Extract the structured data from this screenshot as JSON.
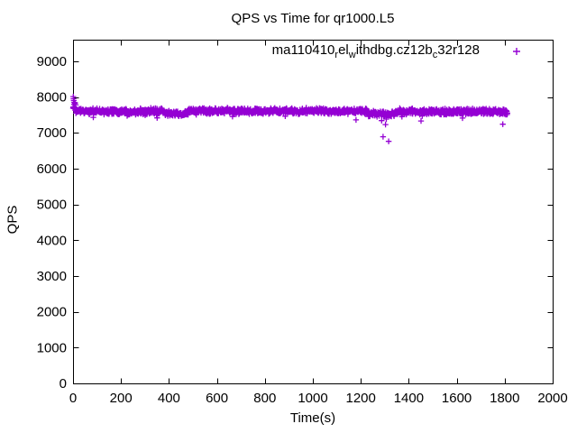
{
  "colors": {
    "series": "#9400D3",
    "axis": "#000000",
    "text": "#000000",
    "background": "#ffffff"
  },
  "chart_data": {
    "type": "scatter",
    "title": "QPS vs Time for qr1000.L5",
    "xlabel": "Time(s)",
    "ylabel": "QPS",
    "xlim": [
      0,
      2000
    ],
    "ylim": [
      0,
      9600
    ],
    "x_ticks": [
      0,
      200,
      400,
      600,
      800,
      1000,
      1200,
      1400,
      1600,
      1800,
      2000
    ],
    "y_ticks": [
      0,
      1000,
      2000,
      3000,
      4000,
      5000,
      6000,
      7000,
      8000,
      9000
    ],
    "grid": false,
    "ticks_mirrored_inward": true,
    "legend_position": "top-right-inside",
    "series": [
      {
        "name": "ma110410_rel_withdbg.cz12b_c32r128",
        "marker": "plus",
        "color": "#9400D3",
        "description": "Dense steady band of ~1 sample/s from t=0 to t=1812 s, QPS ~7500-7700, brief slight dips near t=380-480 and t=1230-1345, deep outliers near t=1300",
        "band_segments": [
          {
            "t_start": 0,
            "t_end": 12,
            "qps_mean": 7720,
            "qps_jitter": 130
          },
          {
            "t_start": 12,
            "t_end": 380,
            "qps_mean": 7600,
            "qps_jitter": 100
          },
          {
            "t_start": 380,
            "t_end": 480,
            "qps_mean": 7540,
            "qps_jitter": 90
          },
          {
            "t_start": 480,
            "t_end": 1230,
            "qps_mean": 7605,
            "qps_jitter": 100
          },
          {
            "t_start": 1230,
            "t_end": 1345,
            "qps_mean": 7525,
            "qps_jitter": 100
          },
          {
            "t_start": 1345,
            "t_end": 1812,
            "qps_mean": 7590,
            "qps_jitter": 100
          }
        ],
        "outlier_points": [
          [
            1,
            8010
          ],
          [
            2,
            7950
          ],
          [
            3,
            7900
          ],
          [
            5,
            7850
          ],
          [
            1180,
            7360
          ],
          [
            1287,
            7340
          ],
          [
            1303,
            7230
          ],
          [
            1293,
            6890
          ],
          [
            1316,
            6760
          ],
          [
            1451,
            7330
          ],
          [
            1624,
            7410
          ],
          [
            1792,
            7240
          ]
        ]
      }
    ]
  }
}
